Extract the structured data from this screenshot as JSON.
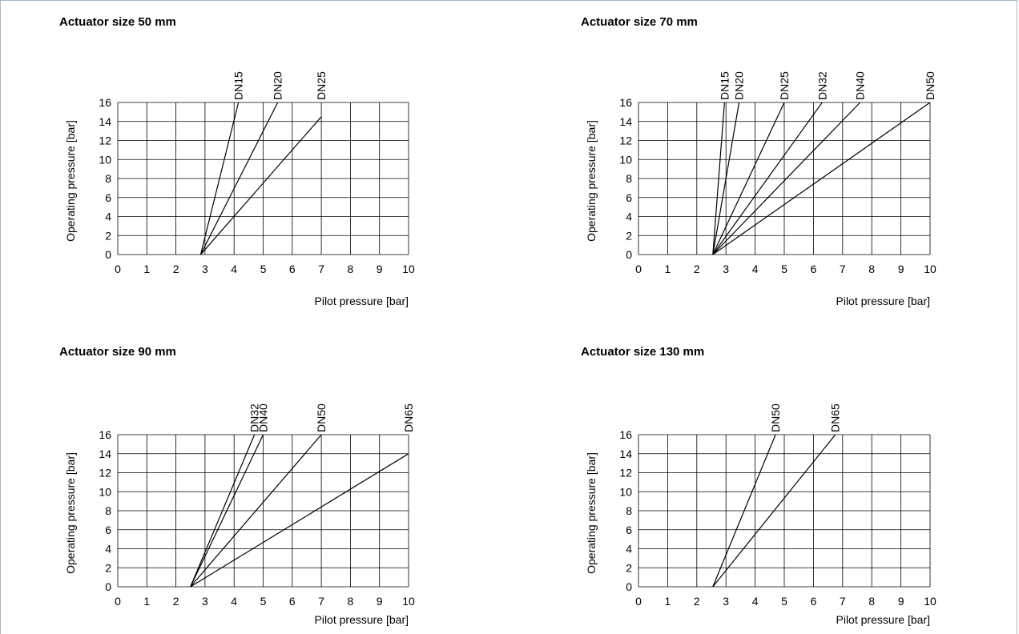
{
  "chart_data": [
    {
      "type": "line",
      "title": "Actuator size 50 mm",
      "xlabel": "Pilot pressure [bar]",
      "ylabel": "Operating pressure [bar]",
      "xlim": [
        0,
        10
      ],
      "ylim": [
        0,
        16
      ],
      "x_ticks": [
        "0",
        "1",
        "2",
        "3",
        "4",
        "5",
        "6",
        "7",
        "8",
        "9",
        "10"
      ],
      "y_ticks": [
        "0",
        "2",
        "4",
        "6",
        "8",
        "10",
        "12",
        "14",
        "16"
      ],
      "grid": true,
      "series": [
        {
          "name": "DN15",
          "x": [
            2.85,
            4.15
          ],
          "y": [
            0,
            16
          ]
        },
        {
          "name": "DN20",
          "x": [
            2.85,
            5.5
          ],
          "y": [
            0,
            16
          ]
        },
        {
          "name": "DN25",
          "x": [
            2.85,
            7.0
          ],
          "y": [
            0,
            14.5
          ]
        }
      ]
    },
    {
      "type": "line",
      "title": "Actuator size 70 mm",
      "xlabel": "Pilot pressure [bar]",
      "ylabel": "Operating pressure [bar]",
      "xlim": [
        0,
        10
      ],
      "ylim": [
        0,
        16
      ],
      "x_ticks": [
        "0",
        "1",
        "2",
        "3",
        "4",
        "5",
        "6",
        "7",
        "8",
        "9",
        "10"
      ],
      "y_ticks": [
        "0",
        "2",
        "4",
        "6",
        "8",
        "10",
        "12",
        "14",
        "16"
      ],
      "grid": true,
      "series": [
        {
          "name": "DN15",
          "x": [
            2.55,
            2.95
          ],
          "y": [
            0,
            16
          ]
        },
        {
          "name": "DN20",
          "x": [
            2.55,
            3.45
          ],
          "y": [
            0,
            16
          ]
        },
        {
          "name": "DN25",
          "x": [
            2.55,
            5.0
          ],
          "y": [
            0,
            16
          ]
        },
        {
          "name": "DN32",
          "x": [
            2.55,
            6.3
          ],
          "y": [
            0,
            16
          ]
        },
        {
          "name": "DN40",
          "x": [
            2.55,
            7.6
          ],
          "y": [
            0,
            16
          ]
        },
        {
          "name": "DN50",
          "x": [
            2.55,
            10.0
          ],
          "y": [
            0,
            16
          ]
        }
      ]
    },
    {
      "type": "line",
      "title": "Actuator size 90 mm",
      "xlabel": "Pilot pressure [bar]",
      "ylabel": "Operating pressure [bar]",
      "xlim": [
        0,
        10
      ],
      "ylim": [
        0,
        16
      ],
      "x_ticks": [
        "0",
        "1",
        "2",
        "3",
        "4",
        "5",
        "6",
        "7",
        "8",
        "9",
        "10"
      ],
      "y_ticks": [
        "0",
        "2",
        "4",
        "6",
        "8",
        "10",
        "12",
        "14",
        "16"
      ],
      "grid": true,
      "series": [
        {
          "name": "DN32",
          "x": [
            2.5,
            4.7
          ],
          "y": [
            0,
            16
          ]
        },
        {
          "name": "DN40",
          "x": [
            2.5,
            5.0
          ],
          "y": [
            0,
            16
          ]
        },
        {
          "name": "DN50",
          "x": [
            2.5,
            7.0
          ],
          "y": [
            0,
            16
          ]
        },
        {
          "name": "DN65",
          "x": [
            2.5,
            10.0
          ],
          "y": [
            0,
            14
          ]
        }
      ]
    },
    {
      "type": "line",
      "title": "Actuator size 130 mm",
      "xlabel": "Pilot pressure [bar]",
      "ylabel": "Operating pressure [bar]",
      "xlim": [
        0,
        10
      ],
      "ylim": [
        0,
        16
      ],
      "x_ticks": [
        "0",
        "1",
        "2",
        "3",
        "4",
        "5",
        "6",
        "7",
        "8",
        "9",
        "10"
      ],
      "y_ticks": [
        "0",
        "2",
        "4",
        "6",
        "8",
        "10",
        "12",
        "14",
        "16"
      ],
      "grid": true,
      "series": [
        {
          "name": "DN50",
          "x": [
            2.55,
            4.7
          ],
          "y": [
            0,
            16
          ]
        },
        {
          "name": "DN65",
          "x": [
            2.55,
            6.75
          ],
          "y": [
            0,
            16
          ]
        }
      ]
    }
  ]
}
